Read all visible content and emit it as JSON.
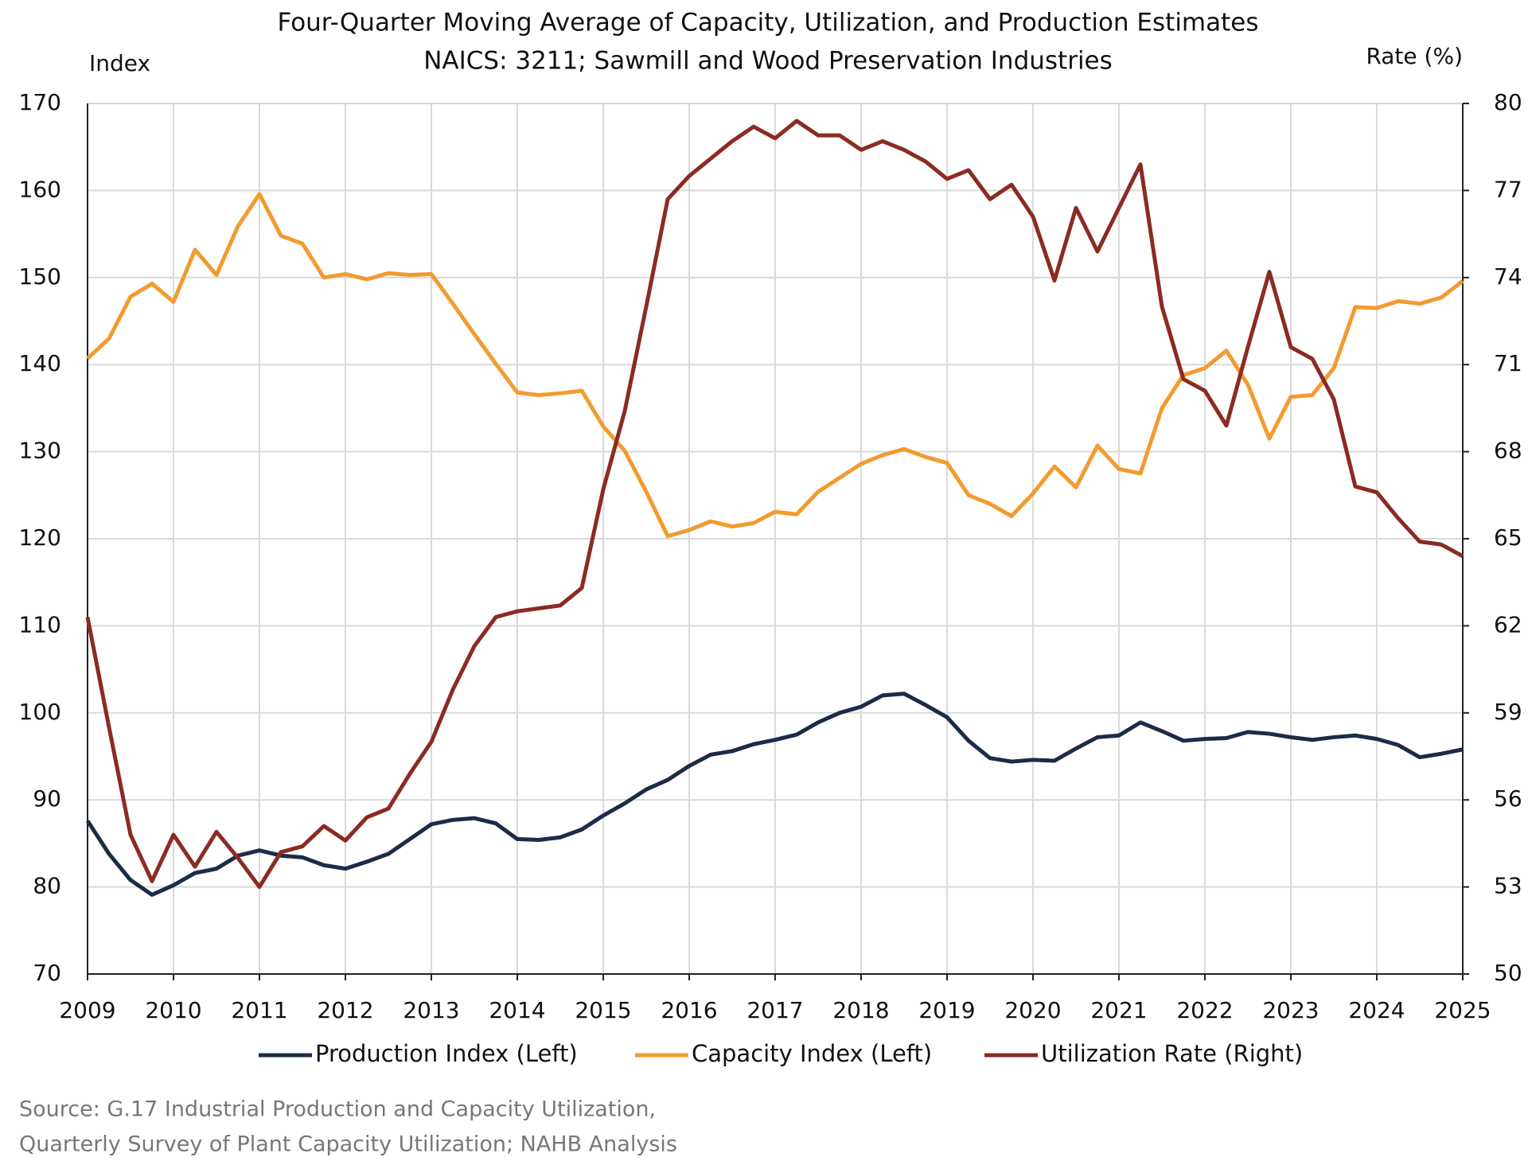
{
  "chart_data": {
    "type": "line",
    "title": [
      "Four-Quarter Moving Average of Capacity, Utilization, and Production Estimates",
      "NAICS: 3211; Sawmill and Wood Preservation Industries"
    ],
    "y_label": "Index",
    "y2_label": "Rate (%)",
    "x": [
      2009,
      2009.25,
      2009.5,
      2009.75,
      2010,
      2010.25,
      2010.5,
      2010.75,
      2011,
      2011.25,
      2011.5,
      2011.75,
      2012,
      2012.25,
      2012.5,
      2012.75,
      2013,
      2013.25,
      2013.5,
      2013.75,
      2014,
      2014.25,
      2014.5,
      2014.75,
      2015,
      2015.25,
      2015.5,
      2015.75,
      2016,
      2016.25,
      2016.5,
      2016.75,
      2017,
      2017.25,
      2017.5,
      2017.75,
      2018,
      2018.25,
      2018.5,
      2018.75,
      2019,
      2019.25,
      2019.5,
      2019.75,
      2020,
      2020.25,
      2020.5,
      2020.75,
      2021,
      2021.25,
      2021.5,
      2021.75,
      2022,
      2022.25,
      2022.5,
      2022.75,
      2023,
      2023.25,
      2023.5,
      2023.75,
      2024,
      2024.25,
      2024.5,
      2024.75,
      2025
    ],
    "xlim": [
      2009,
      2025
    ],
    "xticks": [
      2009,
      2010,
      2011,
      2012,
      2013,
      2014,
      2015,
      2016,
      2017,
      2018,
      2019,
      2020,
      2021,
      2022,
      2023,
      2024,
      2025
    ],
    "ylim": [
      70,
      170
    ],
    "yticks": [
      70,
      80,
      90,
      100,
      110,
      120,
      130,
      140,
      150,
      160,
      170
    ],
    "y2lim": [
      50,
      80
    ],
    "y2ticks": [
      50,
      53,
      56,
      59,
      62,
      65,
      68,
      71,
      74,
      77,
      80
    ],
    "grid": true,
    "series": [
      {
        "name": "Production Index (Left)",
        "color": "#1c2b48",
        "axis": "y",
        "values": [
          87.6,
          83.8,
          80.8,
          79.1,
          80.2,
          81.6,
          82.1,
          83.6,
          84.2,
          83.6,
          83.4,
          82.5,
          82.1,
          82.9,
          83.8,
          85.5,
          87.2,
          87.7,
          87.9,
          87.3,
          85.5,
          85.4,
          85.7,
          86.6,
          88.2,
          89.6,
          91.2,
          92.3,
          93.9,
          95.2,
          95.6,
          96.4,
          96.9,
          97.5,
          98.9,
          100.0,
          100.7,
          102.0,
          102.2,
          100.9,
          99.5,
          96.8,
          94.8,
          94.4,
          94.6,
          94.5,
          95.9,
          97.2,
          97.4,
          98.9,
          97.9,
          96.8,
          97.0,
          97.1,
          97.8,
          97.6,
          97.2,
          96.9,
          97.2,
          97.4,
          97.0,
          96.3,
          94.9,
          95.3,
          95.8
        ]
      },
      {
        "name": "Capacity Index (Left)",
        "color": "#f29b30",
        "axis": "y",
        "values": [
          140.7,
          143.0,
          147.8,
          149.3,
          147.2,
          153.2,
          150.3,
          155.9,
          159.6,
          154.8,
          153.9,
          150.0,
          150.4,
          149.8,
          150.5,
          150.3,
          150.4,
          147.0,
          143.5,
          140.1,
          136.8,
          136.5,
          136.7,
          137.0,
          132.9,
          130.1,
          125.4,
          120.3,
          121.0,
          122.0,
          121.4,
          121.8,
          123.1,
          122.8,
          125.4,
          127.0,
          128.6,
          129.6,
          130.3,
          129.4,
          128.7,
          125.0,
          124.0,
          122.6,
          125.2,
          128.3,
          125.9,
          130.7,
          128.0,
          127.5,
          135.0,
          138.8,
          139.6,
          141.6,
          137.7,
          131.5,
          136.3,
          136.5,
          139.6,
          146.6,
          146.5,
          147.3,
          147.0,
          147.7,
          149.6
        ]
      },
      {
        "name": "Utilization Rate (Right)",
        "color": "#8b2b22",
        "axis": "y2",
        "values": [
          62.3,
          58.5,
          54.8,
          53.2,
          54.8,
          53.7,
          54.9,
          54.0,
          53.0,
          54.2,
          54.4,
          55.1,
          54.6,
          55.4,
          55.7,
          56.9,
          58.0,
          59.8,
          61.3,
          62.3,
          62.5,
          62.6,
          62.7,
          63.3,
          66.7,
          69.4,
          73.0,
          76.7,
          77.5,
          78.1,
          78.7,
          79.2,
          78.8,
          79.4,
          78.9,
          78.9,
          78.4,
          78.7,
          78.4,
          78.0,
          77.4,
          77.7,
          76.7,
          77.2,
          76.1,
          73.9,
          76.4,
          74.9,
          76.4,
          77.9,
          73.0,
          70.5,
          70.1,
          68.9,
          71.6,
          74.2,
          71.6,
          71.2,
          69.8,
          66.8,
          66.6,
          65.7,
          64.9,
          64.8,
          64.4
        ]
      }
    ],
    "source": [
      "Source: G.17 Industrial Production and Capacity Utilization,",
      "Quarterly Survey of Plant Capacity Utilization; NAHB Analysis"
    ]
  }
}
